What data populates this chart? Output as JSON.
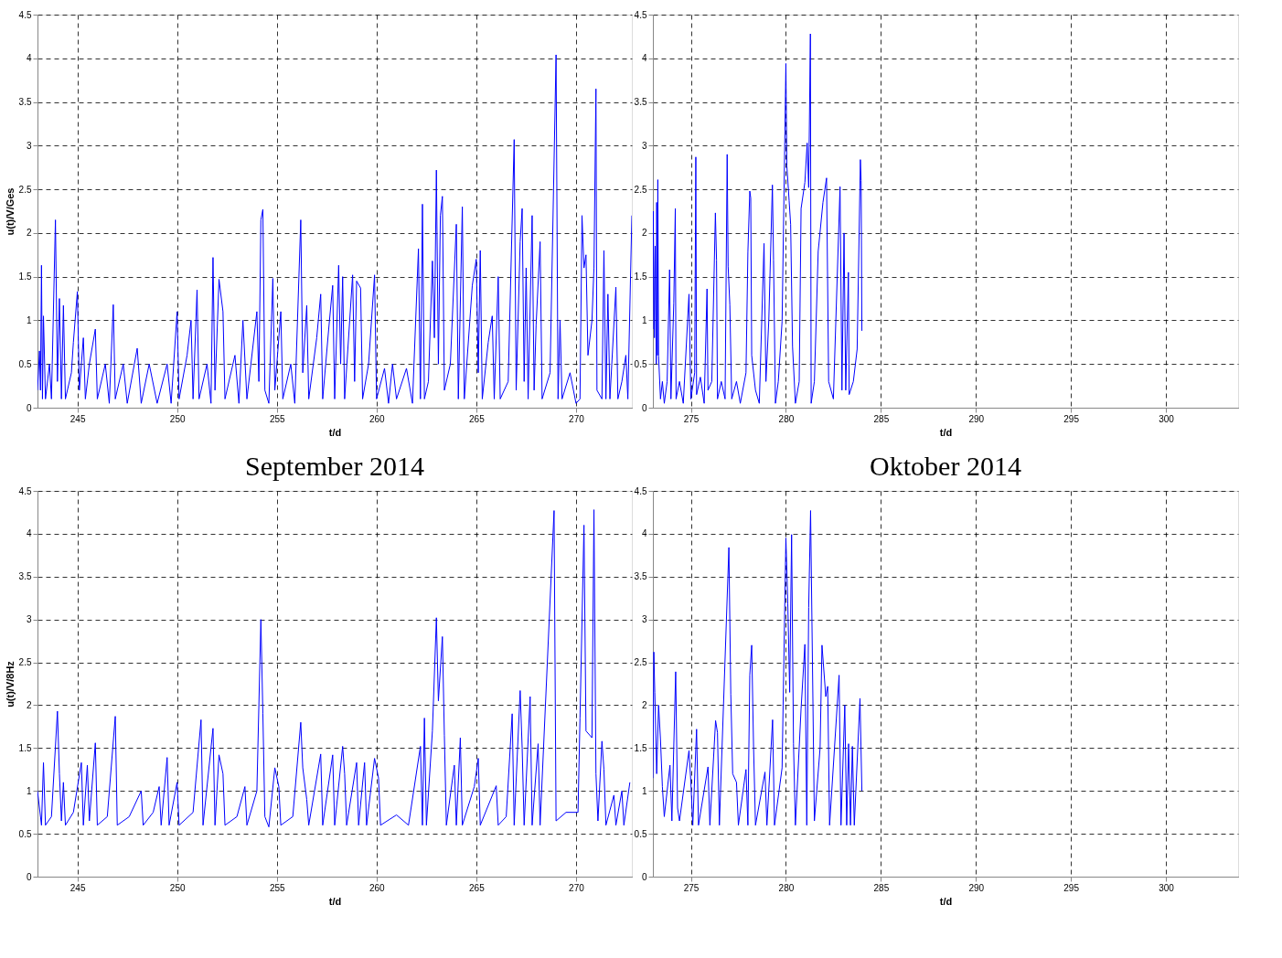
{
  "chart_data": [
    {
      "type": "line",
      "ylabel": "u(t)/V/Ges",
      "xlabel": "t/d",
      "annotations": [
        "September 2014"
      ],
      "xlim": [
        243,
        272.8
      ],
      "ylim": [
        0,
        4.5
      ],
      "xticks": [
        245,
        250,
        255,
        260,
        265,
        270
      ],
      "yticks": [
        0,
        0.5,
        1,
        1.5,
        2,
        2.5,
        3,
        3.5,
        4,
        4.5
      ],
      "grid": true,
      "line_style": "solid",
      "series": [
        {
          "color": "#0000ff",
          "x": [
            243.0,
            243.1,
            243.15,
            243.2,
            243.25,
            243.3,
            243.4,
            243.6,
            243.7,
            243.9,
            244.0,
            244.1,
            244.2,
            244.3,
            244.4,
            244.7,
            244.8,
            245.0,
            245.1,
            245.3,
            245.4,
            245.6,
            245.9,
            246.0,
            246.4,
            246.6,
            246.8,
            246.9,
            247.3,
            247.5,
            248.0,
            248.2,
            248.6,
            249.0,
            249.5,
            249.7,
            250.0,
            250.1,
            250.5,
            250.7,
            250.8,
            251.0,
            251.1,
            251.5,
            251.7,
            251.8,
            251.9,
            252.1,
            252.3,
            252.4,
            252.9,
            253.1,
            253.3,
            253.5,
            254.0,
            254.1,
            254.2,
            254.3,
            254.4,
            254.6,
            254.8,
            254.9,
            255.2,
            255.3,
            255.7,
            255.9,
            256.2,
            256.3,
            256.5,
            256.6,
            257.0,
            257.2,
            257.3,
            257.6,
            257.8,
            257.9,
            258.1,
            258.2,
            258.3,
            258.4,
            258.8,
            258.9,
            259.0,
            259.2,
            259.3,
            259.6,
            259.9,
            260.0,
            260.4,
            260.6,
            260.8,
            261.0,
            261.5,
            261.8,
            262.1,
            262.2,
            262.3,
            262.4,
            262.6,
            262.8,
            262.9,
            263.0,
            263.1,
            263.2,
            263.3,
            263.4,
            263.7,
            264.0,
            264.1,
            264.3,
            264.4,
            264.8,
            265.0,
            265.1,
            265.2,
            265.3,
            265.6,
            265.8,
            265.9,
            266.1,
            266.2,
            266.6,
            266.9,
            267.0,
            267.2,
            267.3,
            267.4,
            267.5,
            267.6,
            267.8,
            267.9,
            268.0,
            268.2,
            268.3,
            268.7,
            269.0,
            269.1,
            269.2,
            269.3,
            269.7,
            270.0,
            270.2,
            270.3,
            270.4,
            270.5,
            270.6,
            270.8,
            270.9,
            271.0,
            271.05,
            271.3,
            271.4,
            271.5,
            271.6,
            271.7,
            272.0,
            272.1,
            272.3,
            272.5,
            272.6,
            272.8
          ],
          "values": [
            0.2,
            0.65,
            0.2,
            1.63,
            0.1,
            1.05,
            0.1,
            0.5,
            0.1,
            2.15,
            0.3,
            1.25,
            0.1,
            1.17,
            0.1,
            0.4,
            0.75,
            1.33,
            0.2,
            0.8,
            0.1,
            0.5,
            0.9,
            0.1,
            0.5,
            0.05,
            1.18,
            0.1,
            0.5,
            0.05,
            0.68,
            0.05,
            0.5,
            0.05,
            0.5,
            0.05,
            1.1,
            0.1,
            0.6,
            1.0,
            0.1,
            1.35,
            0.1,
            0.5,
            0.05,
            1.72,
            0.2,
            1.47,
            1.1,
            0.1,
            0.6,
            0.05,
            1.0,
            0.1,
            1.1,
            0.3,
            2.15,
            2.27,
            0.2,
            0.05,
            1.48,
            0.2,
            1.1,
            0.1,
            0.5,
            0.05,
            2.15,
            0.4,
            1.17,
            0.1,
            0.8,
            1.3,
            0.1,
            0.9,
            1.4,
            0.1,
            1.63,
            0.5,
            1.5,
            0.1,
            1.52,
            0.3,
            1.45,
            1.37,
            0.1,
            0.5,
            1.52,
            0.1,
            0.45,
            0.05,
            0.5,
            0.1,
            0.45,
            0.05,
            1.82,
            0.1,
            2.33,
            0.1,
            0.3,
            1.68,
            0.8,
            2.72,
            0.5,
            2.2,
            2.42,
            0.2,
            0.5,
            2.1,
            0.1,
            2.3,
            0.1,
            1.4,
            1.7,
            0.4,
            1.8,
            0.1,
            0.75,
            1.05,
            0.1,
            1.5,
            0.1,
            0.3,
            3.07,
            0.2,
            1.9,
            2.28,
            0.3,
            1.6,
            0.1,
            2.2,
            0.2,
            0.95,
            1.9,
            0.1,
            0.4,
            4.04,
            0.1,
            1.0,
            0.1,
            0.4,
            0.05,
            0.1,
            2.2,
            1.6,
            1.75,
            0.6,
            1.0,
            1.6,
            3.65,
            0.2,
            0.1,
            1.8,
            0.1,
            1.3,
            0.1,
            1.38,
            0.1,
            0.3,
            0.6,
            0.1,
            2.2
          ]
        }
      ]
    },
    {
      "type": "line",
      "xlabel": "t/d",
      "annotations": [
        "Oktober 2014"
      ],
      "xlim": [
        273,
        303.8
      ],
      "ylim": [
        0,
        4.5
      ],
      "xticks": [
        275,
        280,
        285,
        290,
        295,
        300
      ],
      "yticks": [
        0,
        0.5,
        1,
        1.5,
        2,
        2.5,
        3,
        3.5,
        4,
        4.5
      ],
      "grid": true,
      "line_style": "solid",
      "series": [
        {
          "color": "#0000ff",
          "x": [
            273.0,
            273.02,
            273.08,
            273.12,
            273.18,
            273.2,
            273.24,
            273.26,
            273.3,
            273.4,
            273.5,
            273.6,
            273.75,
            273.88,
            273.95,
            274.1,
            274.18,
            274.22,
            274.4,
            274.6,
            274.9,
            275.0,
            275.2,
            275.26,
            275.3,
            275.5,
            275.7,
            275.85,
            275.9,
            276.1,
            276.29,
            276.35,
            276.4,
            276.6,
            276.8,
            276.91,
            276.96,
            277.05,
            277.15,
            277.4,
            277.6,
            277.9,
            278.0,
            278.1,
            278.15,
            278.2,
            278.4,
            278.6,
            278.85,
            278.95,
            279.1,
            279.29,
            279.35,
            279.45,
            279.6,
            279.8,
            279.95,
            280.0,
            280.05,
            280.17,
            280.25,
            280.35,
            280.5,
            280.7,
            280.8,
            281.0,
            281.12,
            281.2,
            281.29,
            281.33,
            281.5,
            281.7,
            281.95,
            282.14,
            282.25,
            282.5,
            282.85,
            282.95,
            283.06,
            283.15,
            283.29,
            283.33,
            283.55,
            283.75,
            283.92,
            283.96,
            284.0
          ],
          "values": [
            0.9,
            2.25,
            0.8,
            1.85,
            0.5,
            2.35,
            0.6,
            2.61,
            0.59,
            0.1,
            0.3,
            0.05,
            0.3,
            1.58,
            0.1,
            1.2,
            2.28,
            0.1,
            0.3,
            0.05,
            1.3,
            0.1,
            0.4,
            2.87,
            0.15,
            0.35,
            0.05,
            1.36,
            0.2,
            0.3,
            2.23,
            1.69,
            0.1,
            0.3,
            0.1,
            2.9,
            1.62,
            1.18,
            0.1,
            0.3,
            0.05,
            0.4,
            1.78,
            2.48,
            2.4,
            0.6,
            0.2,
            0.05,
            1.88,
            0.3,
            1.0,
            2.55,
            1.69,
            0.05,
            0.3,
            0.99,
            3.17,
            3.94,
            2.77,
            2.37,
            2.1,
            0.7,
            0.05,
            0.3,
            2.28,
            2.58,
            3.03,
            2.52,
            4.28,
            0.05,
            0.3,
            1.79,
            2.35,
            2.63,
            0.3,
            0.1,
            2.53,
            0.2,
            2.0,
            0.2,
            1.55,
            0.15,
            0.3,
            0.67,
            2.84,
            2.6,
            0.88
          ]
        }
      ]
    },
    {
      "type": "line",
      "ylabel": "u(t)/V/8Hz",
      "xlabel": "t/d",
      "xlim": [
        243,
        272.8
      ],
      "ylim": [
        0,
        4.5
      ],
      "xticks": [
        245,
        250,
        255,
        260,
        265,
        270
      ],
      "yticks": [
        0,
        0.5,
        1,
        1.5,
        2,
        2.5,
        3,
        3.5,
        4,
        4.5
      ],
      "grid": true,
      "line_style": "solid",
      "series": [
        {
          "color": "#0000ff",
          "x": [
            243.0,
            243.2,
            243.3,
            243.4,
            243.7,
            244.0,
            244.1,
            244.2,
            244.3,
            244.4,
            244.8,
            245.2,
            245.3,
            245.5,
            245.6,
            245.9,
            246.0,
            246.5,
            246.9,
            247.0,
            247.6,
            248.2,
            248.3,
            248.8,
            249.1,
            249.2,
            249.5,
            249.6,
            250.0,
            250.1,
            250.8,
            251.2,
            251.3,
            251.8,
            251.9,
            252.1,
            252.3,
            252.4,
            253.0,
            253.4,
            253.5,
            254.0,
            254.2,
            254.3,
            254.4,
            254.6,
            254.9,
            255.1,
            255.2,
            255.8,
            256.2,
            256.3,
            256.5,
            256.6,
            257.2,
            257.3,
            257.8,
            257.9,
            258.3,
            258.4,
            258.5,
            259.0,
            259.1,
            259.4,
            259.5,
            259.9,
            260.1,
            260.2,
            261.0,
            261.6,
            262.2,
            262.3,
            262.4,
            262.5,
            262.8,
            263.0,
            263.1,
            263.3,
            263.4,
            263.5,
            263.9,
            264.0,
            264.2,
            264.3,
            264.9,
            265.1,
            265.2,
            266.0,
            266.1,
            266.5,
            266.8,
            266.9,
            267.2,
            267.3,
            267.4,
            267.7,
            267.8,
            268.1,
            268.2,
            268.9,
            269.0,
            269.5,
            270.1,
            270.2,
            270.4,
            270.5,
            270.8,
            270.9,
            271.0,
            271.1,
            271.3,
            271.4,
            271.5,
            271.9,
            272.0,
            272.3,
            272.4,
            272.7
          ],
          "values": [
            1.0,
            0.6,
            1.33,
            0.6,
            0.7,
            1.93,
            1.2,
            0.65,
            1.1,
            0.6,
            0.75,
            1.33,
            0.6,
            1.3,
            0.65,
            1.56,
            0.6,
            0.7,
            1.87,
            0.6,
            0.7,
            1.0,
            0.6,
            0.75,
            1.05,
            0.6,
            1.39,
            0.6,
            1.1,
            0.6,
            0.75,
            1.83,
            0.6,
            1.73,
            0.6,
            1.42,
            1.2,
            0.6,
            0.7,
            1.05,
            0.6,
            1.0,
            3.0,
            1.9,
            0.7,
            0.58,
            1.27,
            1.05,
            0.6,
            0.7,
            1.8,
            1.27,
            0.9,
            0.6,
            1.43,
            0.6,
            1.42,
            0.6,
            1.52,
            1.2,
            0.6,
            1.33,
            0.6,
            1.33,
            0.6,
            1.38,
            1.15,
            0.6,
            0.72,
            0.6,
            1.52,
            0.6,
            1.85,
            0.6,
            1.7,
            3.02,
            2.05,
            2.8,
            1.65,
            0.6,
            1.3,
            0.6,
            1.62,
            0.6,
            1.05,
            1.38,
            0.6,
            1.06,
            0.6,
            0.7,
            1.9,
            0.6,
            2.17,
            1.5,
            0.6,
            2.1,
            0.6,
            1.55,
            0.6,
            4.27,
            0.65,
            0.75,
            0.75,
            1.85,
            4.1,
            1.7,
            1.62,
            4.28,
            1.2,
            0.65,
            1.58,
            1.25,
            0.6,
            0.95,
            0.6,
            1.0,
            0.6,
            1.1
          ]
        }
      ]
    },
    {
      "type": "line",
      "xlabel": "t/d",
      "xlim": [
        273,
        303.8
      ],
      "ylim": [
        0,
        4.5
      ],
      "xticks": [
        275,
        280,
        285,
        290,
        295,
        300
      ],
      "yticks": [
        0,
        0.5,
        1,
        1.5,
        2,
        2.5,
        3,
        3.5,
        4,
        4.5
      ],
      "grid": true,
      "line_style": "solid",
      "series": [
        {
          "color": "#0000ff",
          "x": [
            273.0,
            273.05,
            273.1,
            273.2,
            273.3,
            273.4,
            273.5,
            273.6,
            273.9,
            274.0,
            274.2,
            274.3,
            274.4,
            274.9,
            275.0,
            275.1,
            275.3,
            275.4,
            275.9,
            276.0,
            276.3,
            276.4,
            276.5,
            277.0,
            277.1,
            277.2,
            277.4,
            277.5,
            277.9,
            278.0,
            278.1,
            278.2,
            278.3,
            278.4,
            278.9,
            279.0,
            279.3,
            279.4,
            279.8,
            280.0,
            280.1,
            280.2,
            280.3,
            280.4,
            280.5,
            280.8,
            281.0,
            281.1,
            281.2,
            281.3,
            281.5,
            281.8,
            281.9,
            282.1,
            282.2,
            282.3,
            282.8,
            282.9,
            283.1,
            283.2,
            283.3,
            283.4,
            283.5,
            283.6,
            283.9,
            284.0
          ],
          "values": [
            1.15,
            2.62,
            2.15,
            1.2,
            2.0,
            1.6,
            1.05,
            0.7,
            1.3,
            0.65,
            2.39,
            0.8,
            0.65,
            1.47,
            1.1,
            0.6,
            1.72,
            0.6,
            1.28,
            0.6,
            1.82,
            1.68,
            0.6,
            3.84,
            2.13,
            1.2,
            1.1,
            0.6,
            1.25,
            0.6,
            2.35,
            2.7,
            1.5,
            0.6,
            1.22,
            0.6,
            1.83,
            0.6,
            1.27,
            3.95,
            3.18,
            2.15,
            3.99,
            1.55,
            0.6,
            1.96,
            2.71,
            0.6,
            3.14,
            4.27,
            0.65,
            1.5,
            2.7,
            2.1,
            2.22,
            0.6,
            2.35,
            0.6,
            2.0,
            0.6,
            1.55,
            0.6,
            1.52,
            0.6,
            2.08,
            1.0
          ]
        }
      ]
    }
  ]
}
